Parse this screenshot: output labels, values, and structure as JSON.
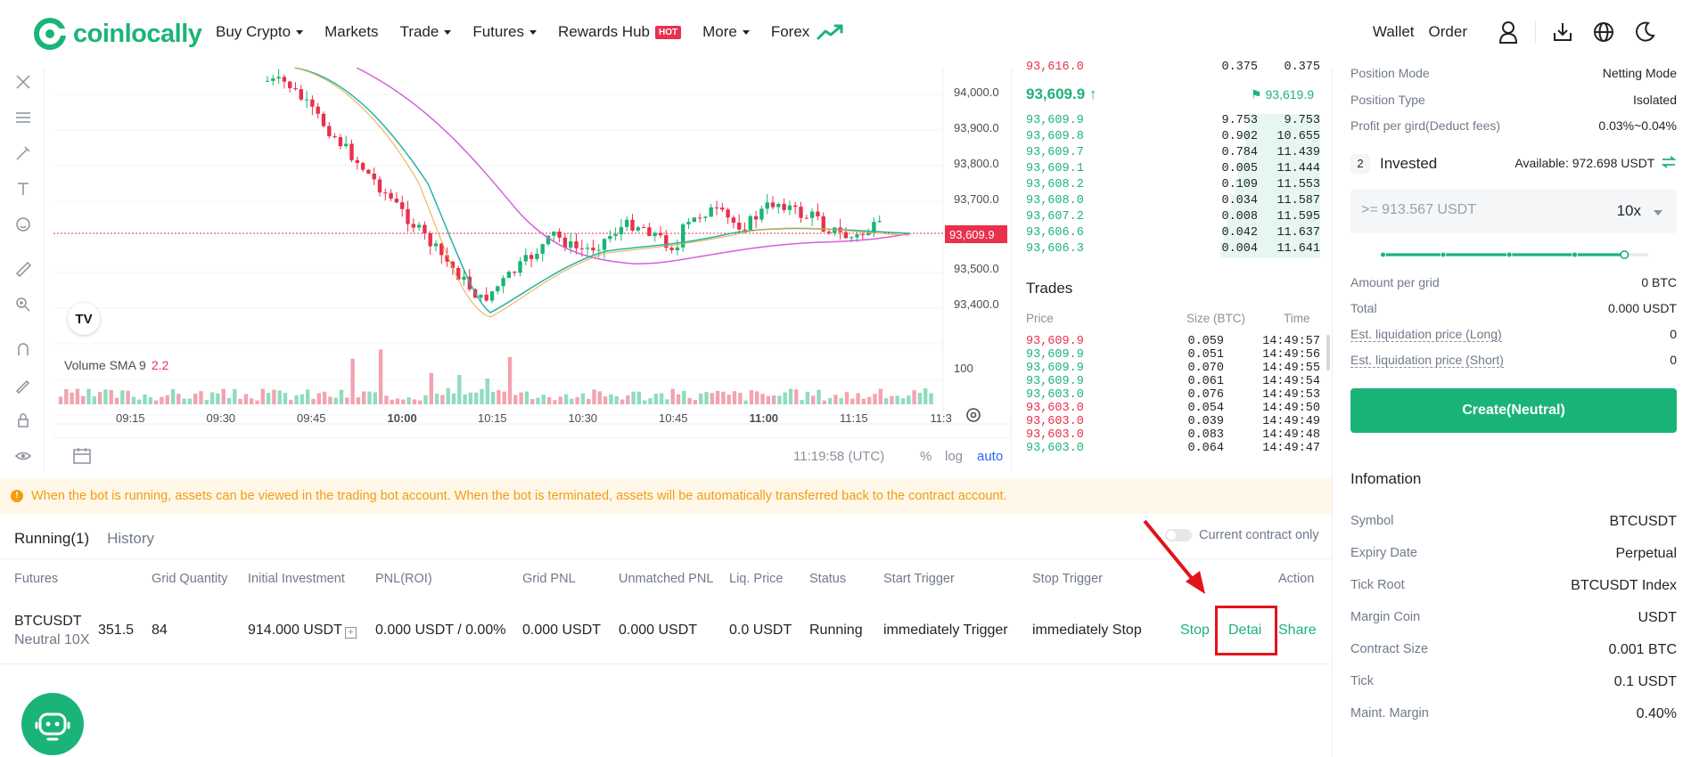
{
  "header": {
    "logo_text": "coinlocally",
    "nav": [
      {
        "label": "Buy Crypto",
        "dropdown": true
      },
      {
        "label": "Markets",
        "dropdown": false
      },
      {
        "label": "Trade",
        "dropdown": true
      },
      {
        "label": "Futures",
        "dropdown": true
      },
      {
        "label": "Rewards Hub",
        "dropdown": false,
        "badge": "HOT"
      },
      {
        "label": "More",
        "dropdown": true
      },
      {
        "label": "Forex",
        "dropdown": false
      }
    ],
    "wallet": "Wallet",
    "order": "Order",
    "icons": [
      "user-icon",
      "download-icon",
      "globe-icon",
      "moon-icon"
    ]
  },
  "chart": {
    "price_ticks": [
      "94,000.0",
      "93,900.0",
      "93,800.0",
      "93,700.0",
      "93,609.9",
      "93,500.0",
      "93,400.0",
      "100"
    ],
    "time_ticks": [
      "09:15",
      "09:30",
      "09:45",
      "10:00",
      "10:15",
      "10:30",
      "10:45",
      "11:00",
      "11:15",
      "11:3"
    ],
    "volume_label": "Volume SMA 9",
    "volume_value": "2.2",
    "clock": "11:19:58 (UTC)",
    "opts": [
      "%",
      "log",
      "auto"
    ],
    "tv_logo": "TV"
  },
  "orderbook": {
    "mid_price": "93,609.9 ↑",
    "mid_flag": "93,619.9",
    "top_cut": {
      "price": "93,616.0",
      "size": "0.375",
      "sum": "0.375"
    },
    "bids": [
      {
        "price": "93,609.9",
        "size": "9.753",
        "sum": "9.753"
      },
      {
        "price": "93,609.8",
        "size": "0.902",
        "sum": "10.655"
      },
      {
        "price": "93,609.7",
        "size": "0.784",
        "sum": "11.439"
      },
      {
        "price": "93,609.1",
        "size": "0.005",
        "sum": "11.444"
      },
      {
        "price": "93,608.2",
        "size": "0.109",
        "sum": "11.553"
      },
      {
        "price": "93,608.0",
        "size": "0.034",
        "sum": "11.587"
      },
      {
        "price": "93,607.2",
        "size": "0.008",
        "sum": "11.595"
      },
      {
        "price": "93,606.6",
        "size": "0.042",
        "sum": "11.637"
      },
      {
        "price": "93,606.3",
        "size": "0.004",
        "sum": "11.641"
      }
    ],
    "trades_title": "Trades",
    "trades_headers": {
      "price": "Price",
      "size": "Size (BTC)",
      "time": "Time"
    },
    "trades": [
      {
        "price": "93,609.9",
        "size": "0.059",
        "time": "14:49:57",
        "side": "red"
      },
      {
        "price": "93,609.9",
        "size": "0.051",
        "time": "14:49:56",
        "side": "green"
      },
      {
        "price": "93,609.9",
        "size": "0.070",
        "time": "14:49:55",
        "side": "green"
      },
      {
        "price": "93,609.9",
        "size": "0.061",
        "time": "14:49:54",
        "side": "green"
      },
      {
        "price": "93,603.0",
        "size": "0.076",
        "time": "14:49:53",
        "side": "green"
      },
      {
        "price": "93,603.0",
        "size": "0.054",
        "time": "14:49:50",
        "side": "red"
      },
      {
        "price": "93,603.0",
        "size": "0.039",
        "time": "14:49:49",
        "side": "red"
      },
      {
        "price": "93,603.0",
        "size": "0.083",
        "time": "14:49:48",
        "side": "red"
      },
      {
        "price": "93,603.0",
        "size": "0.064",
        "time": "14:49:47",
        "side": "green"
      }
    ]
  },
  "right_panel": {
    "position_mode": {
      "label": "Position Mode",
      "value": "Netting Mode"
    },
    "position_type": {
      "label": "Position Type",
      "value": "Isolated"
    },
    "profit_per_grid": {
      "label": "Profit per gird(Deduct fees)",
      "value": "0.03%~0.04%"
    },
    "step": "2",
    "invested_label": "Invested",
    "available": "Available: 972.698 USDT",
    "invest_placeholder": ">= 913.567 USDT",
    "leverage": "10x",
    "amount_per_grid": {
      "label": "Amount per grid",
      "value": "0 BTC"
    },
    "total": {
      "label": "Total",
      "value": "0.000 USDT"
    },
    "liq_long": {
      "label": "Est. liquidation price (Long)",
      "value": "0"
    },
    "liq_short": {
      "label": "Est. liquidation price (Short)",
      "value": "0"
    },
    "create_button": "Create(Neutral)",
    "info_title": "Infomation",
    "info": [
      {
        "label": "Symbol",
        "value": "BTCUSDT"
      },
      {
        "label": "Expiry Date",
        "value": "Perpetual"
      },
      {
        "label": "Tick Root",
        "value": "BTCUSDT Index"
      },
      {
        "label": "Margin Coin",
        "value": "USDT"
      },
      {
        "label": "Contract Size",
        "value": "0.001 BTC"
      },
      {
        "label": "Tick",
        "value": "0.1 USDT"
      },
      {
        "label": "Maint. Margin",
        "value": "0.40%"
      }
    ]
  },
  "notice": "When the bot is running, assets can be viewed in the trading bot account. When the bot is terminated, assets will be automatically transferred back to the contract account.",
  "bottom": {
    "tabs": [
      "Running(1)",
      "History"
    ],
    "toggle_label": "Current contract only",
    "columns": [
      "Futures",
      "Grid Quantity",
      "Initial Investment",
      "PNL(ROI)",
      "Grid PNL",
      "Unmatched PNL",
      "Liq. Price",
      "Status",
      "Start Trigger",
      "Stop Trigger",
      "Action"
    ],
    "row": {
      "symbol": "BTCUSDT",
      "sub": "Neutral 10X",
      "price_cut": "351.5",
      "grid_quantity": "84",
      "initial_investment": "914.000 USDT",
      "pnl_roi": "0.000 USDT / 0.00%",
      "grid_pnl": "0.000 USDT",
      "unmatched_pnl": "0.000 USDT",
      "liq_price": "0.0 USDT",
      "status": "Running",
      "start_trigger": "immediately Trigger",
      "stop_trigger": "immediately Stop",
      "actions": [
        "Stop",
        "Detai",
        "Share"
      ]
    }
  },
  "colors": {
    "brand": "#1bb478",
    "red": "#e9304c",
    "notice": "#f39c12",
    "annotation": "#e3131b"
  }
}
